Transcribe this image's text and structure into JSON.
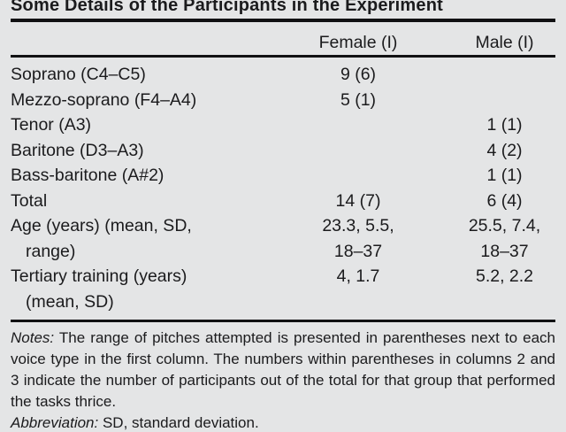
{
  "title": "Some Details of the Participants in the Experiment",
  "table": {
    "header": {
      "col1": "",
      "female": "Female (I)",
      "male": "Male (I)"
    },
    "rows": [
      {
        "label": "Soprano (C4–C5)",
        "female": "9 (6)",
        "male": ""
      },
      {
        "label": "Mezzo-soprano (F4–A4)",
        "female": "5 (1)",
        "male": ""
      },
      {
        "label": "Tenor (A3)",
        "female": "",
        "male": "1 (1)"
      },
      {
        "label": "Baritone (D3–A3)",
        "female": "",
        "male": "4 (2)"
      },
      {
        "label": "Bass-baritone (A#2)",
        "female": "",
        "male": "1 (1)"
      },
      {
        "label": "Total",
        "female": "14 (7)",
        "male": "6 (4)"
      },
      {
        "label": "Age (years) (mean, SD,",
        "female": "23.3, 5.5,",
        "male": "25.5, 7.4,"
      },
      {
        "label": "range)",
        "female": "18–37",
        "male": "18–37"
      },
      {
        "label": "Tertiary training (years)",
        "female": "4, 1.7",
        "male": "5.2, 2.2"
      },
      {
        "label": "(mean, SD)",
        "female": "",
        "male": ""
      }
    ]
  },
  "notes": {
    "notes_label": "Notes:",
    "notes_text": "The range of pitches attempted is presented in parentheses next to each voice type in the first column. The numbers within parentheses in columns 2 and 3 indicate the number of participants out of the total for that group that performed the tasks thrice.",
    "abbreviation_label": "Abbreviation:",
    "abbreviation_text": "SD, standard deviation."
  },
  "colors": {
    "background": "#e4e5e6",
    "text": "#1b1b1d",
    "rule": "#111113"
  }
}
